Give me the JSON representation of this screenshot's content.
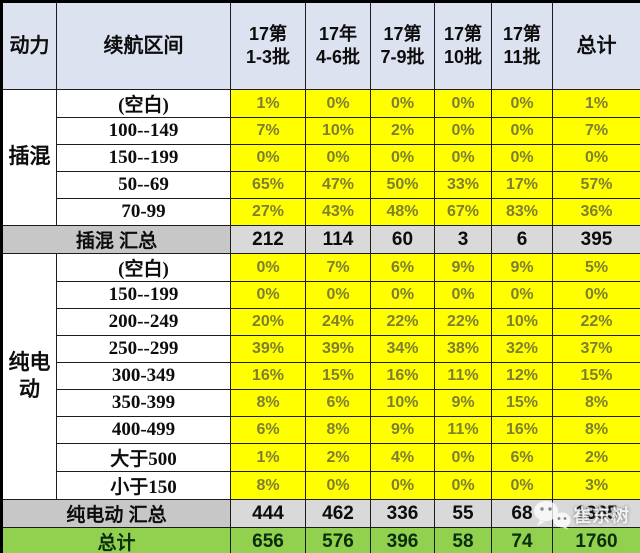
{
  "chart_data": {
    "type": "table",
    "columns": [
      "动力",
      "续航区间",
      "17第\n1-3批",
      "17年\n4-6批",
      "17第\n7-9批",
      "17第\n10批",
      "17第\n11批",
      "总计"
    ],
    "groups": [
      {
        "name": "插混",
        "rows": [
          {
            "range": "(空白)",
            "values": [
              "1%",
              "0%",
              "0%",
              "0%",
              "0%",
              "1%"
            ]
          },
          {
            "range": "100--149",
            "values": [
              "7%",
              "10%",
              "2%",
              "0%",
              "0%",
              "7%"
            ]
          },
          {
            "range": "150--199",
            "values": [
              "0%",
              "0%",
              "0%",
              "0%",
              "0%",
              "0%"
            ]
          },
          {
            "range": "50--69",
            "values": [
              "65%",
              "47%",
              "50%",
              "33%",
              "17%",
              "57%"
            ]
          },
          {
            "range": "70-99",
            "values": [
              "27%",
              "43%",
              "48%",
              "67%",
              "83%",
              "36%"
            ]
          }
        ],
        "subtotal": {
          "label": "插混 汇总",
          "values": [
            "212",
            "114",
            "60",
            "3",
            "6",
            "395"
          ]
        }
      },
      {
        "name": "纯电动",
        "rows": [
          {
            "range": "(空白)",
            "values": [
              "0%",
              "7%",
              "6%",
              "9%",
              "9%",
              "5%"
            ]
          },
          {
            "range": "150--199",
            "values": [
              "0%",
              "0%",
              "0%",
              "0%",
              "0%",
              "0%"
            ]
          },
          {
            "range": "200--249",
            "values": [
              "20%",
              "24%",
              "22%",
              "22%",
              "10%",
              "22%"
            ]
          },
          {
            "range": "250--299",
            "values": [
              "39%",
              "39%",
              "34%",
              "38%",
              "32%",
              "37%"
            ]
          },
          {
            "range": "300-349",
            "values": [
              "16%",
              "15%",
              "16%",
              "11%",
              "12%",
              "15%"
            ]
          },
          {
            "range": "350-399",
            "values": [
              "8%",
              "6%",
              "10%",
              "9%",
              "15%",
              "8%"
            ]
          },
          {
            "range": "400-499",
            "values": [
              "6%",
              "8%",
              "9%",
              "11%",
              "16%",
              "8%"
            ]
          },
          {
            "range": "大于500",
            "values": [
              "1%",
              "2%",
              "4%",
              "0%",
              "6%",
              "2%"
            ]
          },
          {
            "range": "小于150",
            "values": [
              "8%",
              "0%",
              "0%",
              "0%",
              "0%",
              "3%"
            ]
          }
        ],
        "subtotal": {
          "label": "纯电动 汇总",
          "values": [
            "444",
            "462",
            "336",
            "55",
            "68",
            "1365"
          ]
        }
      }
    ],
    "grand_total": {
      "label": "总计",
      "values": [
        "656",
        "576",
        "396",
        "58",
        "74",
        "1760"
      ]
    }
  },
  "watermark": {
    "icon": "wechat-icon",
    "text": "崔东树"
  },
  "colors": {
    "header_bg": "#dce2ef",
    "percent_bg": "#ffff00",
    "percent_text": "#7e7e33",
    "subtotal_label_bg": "#c7c7c7",
    "subtotal_value_bg": "#d9d9d9",
    "total_bg": "#92d050",
    "border": "#1c1c1c"
  }
}
